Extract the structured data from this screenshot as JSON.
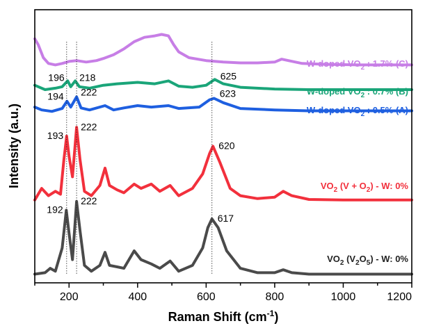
{
  "chart_data": {
    "type": "line",
    "title": "",
    "xlabel_main": "Raman Shift (cm",
    "xlabel_sup": "-1",
    "xlabel_close": ")",
    "ylabel": "Intensity (a.u.)",
    "xlim": [
      100,
      1200
    ],
    "x_ticks": [
      200,
      400,
      600,
      800,
      1000,
      1200
    ],
    "x_tick_labels": [
      "200",
      "400",
      "600",
      "800",
      "1000",
      "1200"
    ],
    "y_ticks_shown": false,
    "grid": false,
    "legend": "inline labels at right of each trace",
    "series": [
      {
        "name": "W-doped VO2 : 1.7% (C)",
        "label_parts": [
          "W-doped VO",
          "2",
          " : 1.7% (C)"
        ],
        "color": "#c77ee6",
        "offset": 7.2,
        "points": [
          [
            100,
            0.9
          ],
          [
            110,
            0.7
          ],
          [
            125,
            0.25
          ],
          [
            140,
            0.05
          ],
          [
            160,
            0.0
          ],
          [
            180,
            0.05
          ],
          [
            200,
            0.12
          ],
          [
            222,
            0.15
          ],
          [
            250,
            0.1
          ],
          [
            280,
            0.15
          ],
          [
            300,
            0.22
          ],
          [
            330,
            0.35
          ],
          [
            360,
            0.55
          ],
          [
            390,
            0.8
          ],
          [
            420,
            0.95
          ],
          [
            450,
            1.0
          ],
          [
            470,
            1.05
          ],
          [
            490,
            1.0
          ],
          [
            505,
            0.7
          ],
          [
            520,
            0.45
          ],
          [
            550,
            0.25
          ],
          [
            600,
            0.15
          ],
          [
            650,
            0.1
          ],
          [
            700,
            0.07
          ],
          [
            750,
            0.07
          ],
          [
            800,
            0.1
          ],
          [
            820,
            0.2
          ],
          [
            840,
            0.15
          ],
          [
            880,
            0.05
          ],
          [
            950,
            0.02
          ],
          [
            1050,
            0.0
          ],
          [
            1150,
            0.0
          ],
          [
            1200,
            0.0
          ]
        ]
      },
      {
        "name": "W-doped VO2 : 0.7% (B)",
        "label_parts": [
          "W-doped VO",
          "2",
          " : 0.7% (B)"
        ],
        "color": "#1aa579",
        "offset": 6.35,
        "points": [
          [
            100,
            0.15
          ],
          [
            130,
            0.0
          ],
          [
            160,
            0.05
          ],
          [
            180,
            0.1
          ],
          [
            196,
            0.3
          ],
          [
            205,
            0.1
          ],
          [
            218,
            0.3
          ],
          [
            230,
            0.1
          ],
          [
            260,
            0.05
          ],
          [
            300,
            0.15
          ],
          [
            340,
            0.2
          ],
          [
            400,
            0.25
          ],
          [
            450,
            0.2
          ],
          [
            490,
            0.3
          ],
          [
            520,
            0.12
          ],
          [
            560,
            0.08
          ],
          [
            600,
            0.15
          ],
          [
            625,
            0.35
          ],
          [
            650,
            0.2
          ],
          [
            700,
            0.08
          ],
          [
            800,
            0.02
          ],
          [
            900,
            0.0
          ],
          [
            1000,
            0.0
          ],
          [
            1200,
            0.0
          ]
        ]
      },
      {
        "name": "W-doped VO2 : 0.5% (A)",
        "label_parts": [
          "W-doped VO",
          "2",
          " : 0.5% (A)"
        ],
        "color": "#1e5fe0",
        "offset": 5.6,
        "points": [
          [
            100,
            0.15
          ],
          [
            120,
            0.05
          ],
          [
            150,
            0.0
          ],
          [
            180,
            0.1
          ],
          [
            194,
            0.35
          ],
          [
            205,
            0.15
          ],
          [
            222,
            0.5
          ],
          [
            235,
            0.12
          ],
          [
            260,
            0.05
          ],
          [
            305,
            0.2
          ],
          [
            330,
            0.05
          ],
          [
            360,
            0.12
          ],
          [
            400,
            0.2
          ],
          [
            440,
            0.15
          ],
          [
            490,
            0.2
          ],
          [
            520,
            0.1
          ],
          [
            580,
            0.15
          ],
          [
            610,
            0.4
          ],
          [
            623,
            0.45
          ],
          [
            650,
            0.3
          ],
          [
            700,
            0.1
          ],
          [
            800,
            0.05
          ],
          [
            900,
            0.02
          ],
          [
            1000,
            0.02
          ],
          [
            1200,
            0.02
          ]
        ]
      },
      {
        "name": "VO2 (V + O2) - W: 0%",
        "label_parts": [
          "VO",
          "2",
          " (V + O",
          "2",
          ") - W: 0%"
        ],
        "color": "#f2303c",
        "offset": 2.55,
        "points": [
          [
            100,
            0.0
          ],
          [
            120,
            0.4
          ],
          [
            140,
            0.15
          ],
          [
            160,
            0.3
          ],
          [
            175,
            0.2
          ],
          [
            185,
            1.4
          ],
          [
            193,
            2.2
          ],
          [
            200,
            1.5
          ],
          [
            210,
            0.8
          ],
          [
            222,
            2.5
          ],
          [
            232,
            1.4
          ],
          [
            245,
            0.3
          ],
          [
            265,
            0.15
          ],
          [
            290,
            0.5
          ],
          [
            305,
            1.1
          ],
          [
            318,
            0.5
          ],
          [
            340,
            0.35
          ],
          [
            360,
            0.25
          ],
          [
            390,
            0.55
          ],
          [
            410,
            0.4
          ],
          [
            440,
            0.55
          ],
          [
            465,
            0.3
          ],
          [
            495,
            0.5
          ],
          [
            520,
            0.15
          ],
          [
            560,
            0.4
          ],
          [
            590,
            0.9
          ],
          [
            610,
            1.6
          ],
          [
            620,
            1.85
          ],
          [
            640,
            1.3
          ],
          [
            670,
            0.4
          ],
          [
            700,
            0.15
          ],
          [
            750,
            0.05
          ],
          [
            800,
            0.1
          ],
          [
            825,
            0.3
          ],
          [
            850,
            0.15
          ],
          [
            900,
            0.02
          ],
          [
            1000,
            0.0
          ],
          [
            1200,
            0.0
          ]
        ]
      },
      {
        "name": "VO2 (V2O5) - W: 0%",
        "label_parts": [
          "VO",
          "2",
          " (V",
          "2",
          "O",
          "5",
          ") - W: 0%"
        ],
        "color": "#4a4a4a",
        "offset": 0.0,
        "points": [
          [
            100,
            0.0
          ],
          [
            130,
            0.05
          ],
          [
            145,
            0.2
          ],
          [
            160,
            0.1
          ],
          [
            180,
            0.9
          ],
          [
            192,
            2.2
          ],
          [
            200,
            1.4
          ],
          [
            210,
            0.5
          ],
          [
            222,
            2.5
          ],
          [
            232,
            1.5
          ],
          [
            245,
            0.3
          ],
          [
            265,
            0.1
          ],
          [
            290,
            0.3
          ],
          [
            305,
            0.75
          ],
          [
            318,
            0.3
          ],
          [
            340,
            0.25
          ],
          [
            360,
            0.2
          ],
          [
            390,
            0.8
          ],
          [
            410,
            0.5
          ],
          [
            440,
            0.35
          ],
          [
            465,
            0.2
          ],
          [
            495,
            0.45
          ],
          [
            520,
            0.1
          ],
          [
            560,
            0.3
          ],
          [
            590,
            0.9
          ],
          [
            605,
            1.6
          ],
          [
            617,
            1.9
          ],
          [
            635,
            1.6
          ],
          [
            660,
            0.8
          ],
          [
            700,
            0.2
          ],
          [
            750,
            0.05
          ],
          [
            800,
            0.05
          ],
          [
            825,
            0.15
          ],
          [
            850,
            0.05
          ],
          [
            900,
            0.0
          ],
          [
            1000,
            0.0
          ],
          [
            1200,
            0.0
          ]
        ]
      }
    ],
    "peak_labels": [
      {
        "text": "196",
        "x": 196,
        "series": 1
      },
      {
        "text": "218",
        "x": 218,
        "series": 1
      },
      {
        "text": "625",
        "x": 625,
        "series": 1
      },
      {
        "text": "194",
        "x": 194,
        "series": 2
      },
      {
        "text": "222",
        "x": 222,
        "series": 2
      },
      {
        "text": "623",
        "x": 623,
        "series": 2
      },
      {
        "text": "193",
        "x": 193,
        "series": 3
      },
      {
        "text": "222",
        "x": 222,
        "series": 3
      },
      {
        "text": "620",
        "x": 620,
        "series": 3
      },
      {
        "text": "192",
        "x": 192,
        "series": 4
      },
      {
        "text": "222",
        "x": 222,
        "series": 4
      },
      {
        "text": "617",
        "x": 617,
        "series": 4
      }
    ],
    "reference_lines_x": [
      193,
      222,
      617
    ]
  }
}
